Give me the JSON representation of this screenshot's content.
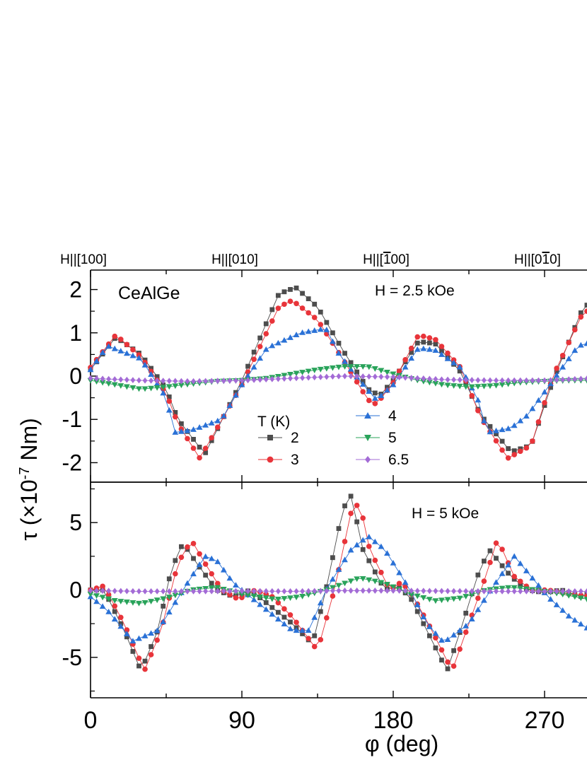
{
  "chart_data": {
    "type": "scatter",
    "x_label": "φ (deg)",
    "y_label_parts": [
      "τ (×10",
      "-7",
      " Nm)"
    ],
    "x_ticks": [
      0,
      90,
      180,
      270
    ],
    "x_range": [
      0,
      300
    ],
    "direction_labels": [
      {
        "phi": 0,
        "parts": [
          "H||[100]"
        ]
      },
      {
        "phi": 90,
        "parts": [
          "H||[010]"
        ]
      },
      {
        "phi": 180,
        "parts": [
          "H||[",
          "1",
          "00]"
        ],
        "overline_index": 1
      },
      {
        "phi": 270,
        "parts": [
          "H||[0",
          "1",
          "0]"
        ],
        "overline_index": 1
      }
    ],
    "legend_title": "T (K)",
    "series_style": [
      {
        "name": "2",
        "color": "#4d4d4d",
        "marker": "square"
      },
      {
        "name": "3",
        "color": "#e8343a",
        "marker": "circle"
      },
      {
        "name": "4",
        "color": "#2a71d6",
        "marker": "triangle-up"
      },
      {
        "name": "5",
        "color": "#29a35a",
        "marker": "triangle-down"
      },
      {
        "name": "6.5",
        "color": "#a36bd6",
        "marker": "diamond"
      }
    ],
    "panels": [
      {
        "annotation": "H = 2.5 kOe",
        "sample_label": "CeAlGe",
        "y_range": [
          -2.45,
          2.45
        ],
        "y_ticks": [
          -2,
          -1,
          0,
          1,
          2
        ],
        "y_tick_labels": [
          "-2",
          "-1",
          "0",
          "1",
          "2"
        ],
        "series": [
          {
            "name": "2",
            "points": [
              [
                0,
                0.15
              ],
              [
                15,
                0.9
              ],
              [
                30,
                0.5
              ],
              [
                45,
                -0.3
              ],
              [
                52,
                -1.0
              ],
              [
                68,
                -1.8
              ],
              [
                90,
                -0.1
              ],
              [
                112,
                1.9
              ],
              [
                122,
                2.05
              ],
              [
                135,
                1.6
              ],
              [
                150,
                0.6
              ],
              [
                165,
                -0.3
              ],
              [
                172,
                -0.45
              ],
              [
                180,
                -0.1
              ],
              [
                195,
                0.8
              ],
              [
                205,
                0.75
              ],
              [
                220,
                0.1
              ],
              [
                232,
                -0.9
              ],
              [
                250,
                -1.75
              ],
              [
                262,
                -1.6
              ],
              [
                275,
                -0.1
              ],
              [
                292,
                1.5
              ],
              [
                300,
                1.85
              ]
            ]
          },
          {
            "name": "3",
            "points": [
              [
                0,
                0.2
              ],
              [
                15,
                0.95
              ],
              [
                30,
                0.45
              ],
              [
                45,
                -0.4
              ],
              [
                52,
                -1.1
              ],
              [
                65,
                -1.9
              ],
              [
                90,
                -0.2
              ],
              [
                112,
                1.6
              ],
              [
                120,
                1.75
              ],
              [
                135,
                1.3
              ],
              [
                150,
                0.4
              ],
              [
                165,
                -0.55
              ],
              [
                170,
                -0.65
              ],
              [
                180,
                -0.15
              ],
              [
                195,
                0.95
              ],
              [
                205,
                0.85
              ],
              [
                220,
                0.2
              ],
              [
                232,
                -0.95
              ],
              [
                248,
                -1.9
              ],
              [
                262,
                -1.6
              ],
              [
                275,
                0
              ],
              [
                292,
                1.4
              ],
              [
                300,
                1.65
              ]
            ]
          },
          {
            "name": "4",
            "points": [
              [
                0,
                0.15
              ],
              [
                10,
                0.7
              ],
              [
                30,
                0.4
              ],
              [
                45,
                -0.5
              ],
              [
                50,
                -1.3
              ],
              [
                60,
                -1.25
              ],
              [
                78,
                -1.0
              ],
              [
                90,
                -0.2
              ],
              [
                105,
                0.65
              ],
              [
                125,
                1.0
              ],
              [
                140,
                1.1
              ],
              [
                148,
                0.5
              ],
              [
                160,
                -0.1
              ],
              [
                170,
                -0.55
              ],
              [
                180,
                -0.2
              ],
              [
                195,
                0.65
              ],
              [
                205,
                0.6
              ],
              [
                220,
                0.2
              ],
              [
                230,
                -0.5
              ],
              [
                236,
                -1.3
              ],
              [
                250,
                -1.2
              ],
              [
                260,
                -0.9
              ],
              [
                275,
                -0.1
              ],
              [
                290,
                0.7
              ],
              [
                300,
                0.8
              ]
            ]
          },
          {
            "name": "5",
            "points": [
              [
                0,
                -0.1
              ],
              [
                15,
                -0.2
              ],
              [
                30,
                -0.3
              ],
              [
                45,
                -0.25
              ],
              [
                60,
                -0.18
              ],
              [
                75,
                -0.12
              ],
              [
                90,
                -0.1
              ],
              [
                105,
                -0.05
              ],
              [
                120,
                0.05
              ],
              [
                135,
                0.15
              ],
              [
                150,
                0.22
              ],
              [
                165,
                0.22
              ],
              [
                180,
                0.05
              ],
              [
                195,
                -0.1
              ],
              [
                210,
                -0.2
              ],
              [
                225,
                -0.25
              ],
              [
                240,
                -0.22
              ],
              [
                255,
                -0.15
              ],
              [
                270,
                -0.12
              ],
              [
                285,
                -0.1
              ],
              [
                300,
                -0.1
              ]
            ]
          },
          {
            "name": "6.5",
            "points": [
              [
                0,
                -0.05
              ],
              [
                30,
                -0.1
              ],
              [
                60,
                -0.12
              ],
              [
                90,
                -0.1
              ],
              [
                120,
                -0.05
              ],
              [
                150,
                0
              ],
              [
                180,
                -0.02
              ],
              [
                210,
                -0.08
              ],
              [
                240,
                -0.1
              ],
              [
                270,
                -0.1
              ],
              [
                300,
                -0.05
              ]
            ]
          }
        ]
      },
      {
        "annotation": "H = 5 kOe",
        "sample_label": "",
        "y_range": [
          -8,
          8
        ],
        "y_ticks": [
          -5,
          0,
          5
        ],
        "y_tick_labels": [
          "-5",
          "0",
          "5"
        ],
        "series": [
          {
            "name": "2",
            "points": [
              [
                0,
                0
              ],
              [
                8,
                0
              ],
              [
                20,
                -3
              ],
              [
                30,
                -6
              ],
              [
                40,
                -3
              ],
              [
                48,
                1.5
              ],
              [
                55,
                3.5
              ],
              [
                63,
                2
              ],
              [
                75,
                0
              ],
              [
                85,
                -0.5
              ],
              [
                95,
                0
              ],
              [
                105,
                -1
              ],
              [
                120,
                -2.5
              ],
              [
                132,
                -4
              ],
              [
                140,
                0
              ],
              [
                150,
                6
              ],
              [
                155,
                7
              ],
              [
                162,
                3
              ],
              [
                175,
                0
              ],
              [
                182,
                0.3
              ],
              [
                190,
                -0.5
              ],
              [
                200,
                -3
              ],
              [
                212,
                -6
              ],
              [
                220,
                -3
              ],
              [
                230,
                1
              ],
              [
                237,
                3
              ],
              [
                250,
                1
              ],
              [
                260,
                0
              ],
              [
                270,
                -0.2
              ],
              [
                280,
                0
              ],
              [
                292,
                -0.5
              ],
              [
                300,
                0
              ]
            ]
          },
          {
            "name": "3",
            "points": [
              [
                0,
                0
              ],
              [
                8,
                0.3
              ],
              [
                20,
                -2.5
              ],
              [
                32,
                -6
              ],
              [
                42,
                -3
              ],
              [
                52,
                2
              ],
              [
                60,
                3.7
              ],
              [
                68,
                2
              ],
              [
                78,
                0
              ],
              [
                88,
                -0.7
              ],
              [
                98,
                0
              ],
              [
                108,
                -0.5
              ],
              [
                120,
                -2
              ],
              [
                135,
                -4.5
              ],
              [
                145,
                0
              ],
              [
                155,
                5.8
              ],
              [
                160,
                6.5
              ],
              [
                166,
                3
              ],
              [
                178,
                0
              ],
              [
                185,
                0.6
              ],
              [
                192,
                -0.5
              ],
              [
                203,
                -3
              ],
              [
                215,
                -6
              ],
              [
                225,
                -2.5
              ],
              [
                235,
                1
              ],
              [
                242,
                3.8
              ],
              [
                252,
                1
              ],
              [
                262,
                0
              ],
              [
                272,
                0
              ],
              [
                284,
                -0.3
              ],
              [
                300,
                -0.5
              ]
            ]
          },
          {
            "name": "4",
            "points": [
              [
                0,
                -0.5
              ],
              [
                10,
                -1.5
              ],
              [
                20,
                -3
              ],
              [
                25,
                -3.8
              ],
              [
                40,
                -3
              ],
              [
                55,
                0
              ],
              [
                68,
                2.5
              ],
              [
                75,
                2.2
              ],
              [
                85,
                0.5
              ],
              [
                95,
                -0.5
              ],
              [
                105,
                -1.5
              ],
              [
                120,
                -3
              ],
              [
                130,
                -3
              ],
              [
                140,
                0
              ],
              [
                155,
                3
              ],
              [
                165,
                4
              ],
              [
                175,
                3
              ],
              [
                190,
                0
              ],
              [
                200,
                -2.5
              ],
              [
                210,
                -3.9
              ],
              [
                225,
                -2.5
              ],
              [
                238,
                0
              ],
              [
                252,
                2.5
              ],
              [
                262,
                1
              ],
              [
                272,
                -0.5
              ],
              [
                285,
                -2
              ],
              [
                300,
                -3.2
              ]
            ]
          },
          {
            "name": "5",
            "points": [
              [
                0,
                -0.3
              ],
              [
                15,
                -0.8
              ],
              [
                30,
                -1
              ],
              [
                45,
                -0.6
              ],
              [
                60,
                0
              ],
              [
                75,
                0.2
              ],
              [
                90,
                -0.3
              ],
              [
                110,
                -0.7
              ],
              [
                125,
                -0.5
              ],
              [
                140,
                0
              ],
              [
                160,
                0.9
              ],
              [
                175,
                0.5
              ],
              [
                190,
                -0.3
              ],
              [
                205,
                -0.8
              ],
              [
                220,
                -0.6
              ],
              [
                235,
                0
              ],
              [
                250,
                0.2
              ],
              [
                265,
                0
              ],
              [
                280,
                -0.3
              ],
              [
                300,
                -0.8
              ]
            ]
          },
          {
            "name": "6.5",
            "points": [
              [
                0,
                -0.05
              ],
              [
                30,
                -0.1
              ],
              [
                60,
                -0.1
              ],
              [
                90,
                -0.08
              ],
              [
                120,
                -0.1
              ],
              [
                150,
                -0.05
              ],
              [
                180,
                -0.05
              ],
              [
                210,
                -0.08
              ],
              [
                240,
                -0.1
              ],
              [
                270,
                -0.1
              ],
              [
                300,
                -0.1
              ]
            ]
          }
        ]
      }
    ]
  }
}
